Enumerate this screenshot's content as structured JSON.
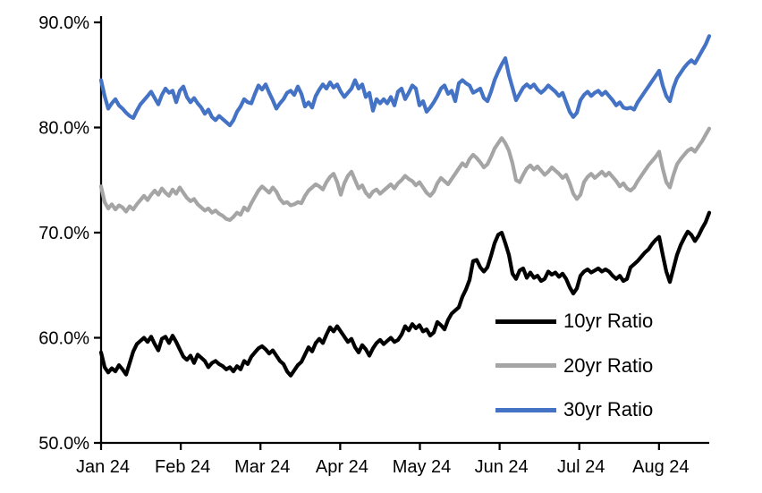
{
  "chart_data": {
    "type": "line",
    "title": "",
    "grid": "off",
    "x_axis": {
      "tick_labels": [
        "Jan 24",
        "Feb 24",
        "Mar 24",
        "Apr 24",
        "May 24",
        "Jun 24",
        "Jul 24",
        "Aug 24"
      ],
      "range_months": [
        0,
        7.63
      ]
    },
    "y_axis": {
      "tick_labels": [
        "50.0%",
        "60.0%",
        "70.0%",
        "80.0%",
        "90.0%"
      ],
      "tick_values": [
        50,
        60,
        70,
        80,
        90
      ],
      "min": 50,
      "max": 90,
      "format": "percent"
    },
    "legend": {
      "position": "inside-lower-right",
      "items": [
        {
          "label": "10yr Ratio",
          "color": "#000000"
        },
        {
          "label": "20yr Ratio",
          "color": "#A5A5A5"
        },
        {
          "label": "30yr Ratio",
          "color": "#4472C4"
        }
      ]
    },
    "series": [
      {
        "name": "10yr Ratio",
        "color": "#000000",
        "x_start_month": 0,
        "x_end_month": 7.63,
        "values": [
          58.6,
          57.2,
          56.7,
          57.1,
          56.8,
          57.4,
          57.0,
          56.5,
          57.6,
          58.7,
          59.4,
          59.7,
          60.0,
          59.6,
          60.1,
          59.4,
          58.8,
          59.9,
          60.1,
          59.5,
          60.2,
          59.6,
          58.9,
          58.2,
          57.9,
          58.3,
          57.6,
          58.4,
          58.1,
          57.8,
          57.2,
          57.6,
          57.8,
          57.5,
          57.3,
          57.0,
          57.2,
          56.8,
          57.3,
          57.0,
          57.8,
          57.5,
          58.2,
          58.6,
          59.0,
          59.2,
          58.9,
          58.5,
          58.8,
          58.3,
          57.8,
          57.5,
          56.8,
          56.4,
          56.9,
          57.4,
          57.7,
          58.4,
          59.1,
          58.7,
          59.5,
          59.9,
          59.5,
          60.3,
          61.0,
          60.6,
          61.1,
          60.6,
          60.1,
          59.6,
          59.9,
          59.1,
          58.6,
          59.3,
          58.9,
          58.3,
          59.0,
          59.5,
          59.8,
          59.4,
          59.7,
          60.0,
          59.6,
          59.8,
          60.3,
          61.1,
          60.7,
          61.3,
          60.9,
          61.2,
          60.6,
          60.8,
          60.2,
          60.5,
          61.5,
          61.2,
          60.8,
          61.7,
          62.3,
          62.6,
          62.9,
          63.9,
          64.6,
          65.5,
          67.3,
          67.4,
          66.7,
          66.3,
          66.7,
          67.8,
          69.0,
          69.8,
          70.0,
          69.0,
          67.9,
          66.1,
          65.6,
          66.4,
          66.6,
          65.7,
          66.2,
          65.7,
          65.9,
          65.4,
          65.6,
          66.3,
          66.0,
          66.2,
          65.8,
          66.1,
          65.6,
          64.8,
          64.2,
          64.7,
          65.9,
          66.3,
          66.5,
          66.2,
          66.4,
          66.6,
          66.3,
          66.5,
          66.3,
          65.9,
          65.6,
          65.9,
          65.4,
          65.6,
          66.7,
          67.0,
          67.3,
          67.7,
          68.1,
          68.4,
          68.9,
          69.3,
          69.6,
          67.9,
          66.3,
          65.3,
          66.6,
          67.9,
          68.8,
          69.5,
          70.1,
          69.8,
          69.2,
          69.7,
          70.4,
          71.0,
          71.9
        ]
      },
      {
        "name": "20yr Ratio",
        "color": "#A5A5A5",
        "x_start_month": 0,
        "x_end_month": 7.63,
        "values": [
          74.4,
          72.9,
          72.3,
          72.7,
          72.2,
          72.6,
          72.4,
          72.0,
          72.5,
          72.2,
          72.7,
          73.1,
          73.5,
          73.1,
          73.6,
          74.0,
          73.6,
          74.2,
          73.8,
          73.5,
          74.1,
          73.7,
          74.3,
          73.8,
          73.3,
          73.0,
          73.2,
          72.7,
          72.4,
          72.1,
          72.3,
          71.9,
          72.1,
          71.8,
          71.6,
          71.3,
          71.2,
          71.5,
          71.9,
          71.7,
          72.4,
          72.1,
          72.8,
          73.4,
          74.0,
          74.4,
          74.1,
          73.8,
          74.3,
          73.9,
          73.2,
          72.8,
          72.9,
          72.6,
          72.7,
          72.9,
          72.8,
          73.5,
          74.0,
          74.3,
          74.6,
          74.4,
          74.1,
          74.8,
          75.3,
          75.6,
          74.8,
          73.6,
          74.7,
          75.4,
          75.8,
          75.0,
          74.2,
          74.5,
          73.8,
          73.4,
          73.9,
          74.1,
          73.7,
          74.0,
          74.3,
          74.6,
          74.2,
          74.7,
          75.0,
          75.4,
          75.1,
          74.9,
          74.5,
          74.8,
          74.3,
          73.8,
          73.5,
          73.9,
          74.7,
          75.2,
          74.9,
          74.6,
          75.1,
          75.6,
          76.1,
          76.6,
          76.3,
          77.0,
          77.4,
          77.1,
          76.7,
          76.2,
          76.5,
          77.2,
          78.0,
          78.5,
          79.0,
          78.5,
          77.8,
          76.6,
          75.0,
          74.8,
          75.5,
          76.1,
          76.4,
          76.0,
          76.3,
          75.9,
          75.5,
          75.8,
          76.2,
          75.9,
          75.6,
          75.2,
          75.5,
          74.7,
          73.7,
          73.2,
          73.6,
          74.8,
          75.3,
          75.6,
          75.2,
          75.5,
          75.8,
          75.4,
          75.7,
          75.3,
          74.9,
          74.4,
          74.7,
          74.2,
          74.0,
          74.3,
          74.9,
          75.4,
          75.9,
          76.4,
          76.8,
          77.2,
          77.7,
          76.1,
          74.8,
          74.3,
          75.5,
          76.5,
          77.0,
          77.4,
          77.8,
          78.0,
          77.7,
          78.2,
          78.7,
          79.3,
          79.9
        ]
      },
      {
        "name": "30yr Ratio",
        "color": "#4472C4",
        "x_start_month": 0,
        "x_end_month": 7.63,
        "values": [
          84.5,
          83.0,
          81.8,
          82.3,
          82.7,
          82.1,
          81.8,
          81.4,
          81.1,
          80.9,
          81.6,
          82.2,
          82.6,
          83.0,
          83.4,
          82.8,
          82.2,
          83.1,
          83.7,
          83.3,
          83.5,
          82.4,
          83.5,
          83.9,
          82.9,
          82.4,
          82.8,
          82.3,
          81.9,
          81.3,
          81.7,
          81.0,
          80.7,
          81.1,
          80.8,
          80.5,
          80.2,
          80.7,
          81.5,
          82.0,
          82.7,
          82.4,
          82.3,
          83.2,
          84.0,
          83.6,
          84.1,
          83.3,
          82.6,
          81.8,
          82.3,
          82.7,
          83.3,
          83.5,
          83.1,
          83.9,
          83.2,
          82.0,
          82.4,
          81.9,
          83.0,
          83.6,
          84.1,
          83.7,
          84.3,
          83.8,
          84.1,
          83.4,
          82.9,
          83.3,
          83.7,
          84.5,
          83.7,
          84.1,
          82.9,
          83.3,
          81.6,
          82.7,
          82.3,
          82.7,
          82.3,
          82.9,
          82.1,
          83.4,
          83.7,
          82.7,
          83.3,
          84.0,
          83.7,
          82.1,
          82.5,
          81.5,
          81.9,
          82.4,
          83.0,
          83.7,
          84.0,
          83.2,
          83.5,
          82.5,
          84.2,
          84.5,
          84.2,
          84.0,
          83.3,
          83.5,
          83.7,
          82.8,
          82.5,
          83.4,
          84.5,
          85.3,
          86.0,
          86.6,
          85.0,
          83.8,
          82.6,
          83.2,
          83.8,
          84.1,
          83.8,
          84.1,
          83.6,
          83.3,
          83.6,
          84.0,
          83.7,
          83.4,
          83.0,
          83.3,
          82.4,
          81.5,
          81.0,
          81.4,
          82.6,
          83.1,
          83.4,
          83.0,
          83.3,
          83.5,
          83.1,
          83.4,
          83.0,
          82.6,
          82.1,
          82.4,
          81.9,
          81.8,
          81.9,
          81.7,
          82.4,
          82.9,
          83.4,
          83.9,
          84.4,
          84.9,
          85.4,
          84.0,
          83.0,
          82.5,
          83.8,
          84.7,
          85.2,
          85.7,
          86.1,
          86.4,
          86.1,
          86.7,
          87.3,
          87.9,
          88.7
        ]
      }
    ]
  }
}
